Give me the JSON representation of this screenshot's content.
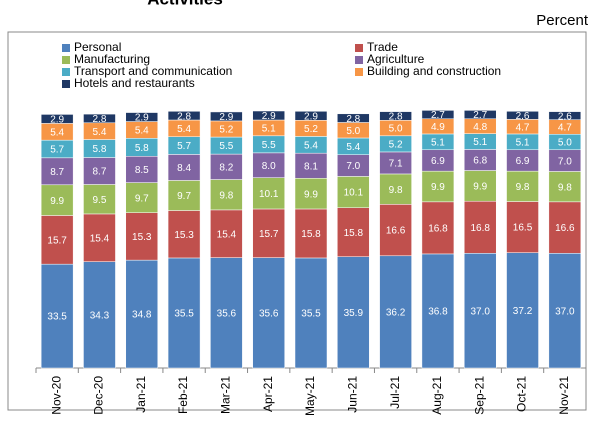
{
  "chart_data": {
    "type": "stacked-bar",
    "title": "Activities",
    "y_label": "Percent",
    "categories": [
      "Nov-20",
      "Dec-20",
      "Jan-21",
      "Feb-21",
      "Mar-21",
      "Apr-21",
      "May-21",
      "Jun-21",
      "Jul-21",
      "Aug-21",
      "Sep-21",
      "Oct-21",
      "Nov-21"
    ],
    "series": [
      {
        "name": "Personal",
        "color": "#4f81bd",
        "values": [
          33.5,
          34.3,
          34.8,
          35.5,
          35.6,
          35.6,
          35.5,
          35.9,
          36.2,
          36.8,
          37,
          37.2,
          37
        ],
        "value_labels": [
          "33.5",
          "34.3",
          "34.8",
          "35.5",
          "35.6",
          "35.6",
          "35.5",
          "35.9",
          "36.2",
          "36.8",
          "37.0",
          "37.2",
          "37.0"
        ]
      },
      {
        "name": "Trade",
        "color": "#c0504d",
        "values": [
          15.7,
          15.4,
          15.3,
          15.3,
          15.4,
          15.7,
          15.8,
          15.8,
          16.6,
          16.8,
          16.8,
          16.5,
          16.6
        ],
        "value_labels": [
          "15.7",
          "15.4",
          "15.3",
          "15.3",
          "15.4",
          "15.7",
          "15.8",
          "15.8",
          "16.6",
          "16.8",
          "16.8",
          "16.5",
          "16.6"
        ]
      },
      {
        "name": "Manufacturing",
        "color": "#9bbb59",
        "values": [
          9.9,
          9.5,
          9.7,
          9.7,
          9.8,
          10.1,
          9.9,
          10.1,
          9.8,
          9.9,
          9.9,
          9.8,
          9.8
        ],
        "value_labels": [
          "9.9",
          "9.5",
          "9.7",
          "9.7",
          "9.8",
          "10.1",
          "9.9",
          "10.1",
          "9.8",
          "9.9",
          "9.9",
          "9.8",
          "9.8"
        ]
      },
      {
        "name": "Agriculture",
        "color": "#8064a2",
        "values": [
          8.7,
          8.7,
          8.5,
          8.4,
          8.2,
          8,
          8.1,
          7,
          7.1,
          6.9,
          6.8,
          6.9,
          7
        ],
        "value_labels": [
          "8.7",
          "8.7",
          "8.5",
          "8.4",
          "8.2",
          "8.0",
          "8.1",
          "7.0",
          "7.1",
          "6.9",
          "6.8",
          "6.9",
          "7.0"
        ]
      },
      {
        "name": "Transport and communication",
        "color": "#4bacc6",
        "values": [
          5.7,
          5.8,
          5.8,
          5.7,
          5.5,
          5.5,
          5.4,
          5.4,
          5.2,
          5.1,
          5.1,
          5.1,
          5
        ],
        "value_labels": [
          "5.7",
          "5.8",
          "5.8",
          "5.7",
          "5.5",
          "5.5",
          "5.4",
          "5.4",
          "5.2",
          "5.1",
          "5.1",
          "5.1",
          "5.0"
        ]
      },
      {
        "name": "Building and construction",
        "color": "#f79646",
        "values": [
          5.4,
          5.4,
          5.4,
          5.4,
          5.2,
          5.1,
          5.2,
          5,
          5,
          4.9,
          4.8,
          4.7,
          4.7
        ],
        "value_labels": [
          "5.4",
          "5.4",
          "5.4",
          "5.4",
          "5.2",
          "5.1",
          "5.2",
          "5.0",
          "5.0",
          "4.9",
          "4.8",
          "4.7",
          "4.7"
        ]
      },
      {
        "name": "Hotels and restaurants",
        "color": "#1f3864",
        "values": [
          2.9,
          2.8,
          2.9,
          2.8,
          2.9,
          2.9,
          2.9,
          2.8,
          2.8,
          2.7,
          2.7,
          2.6,
          2.6
        ],
        "value_labels": [
          "2.9",
          "2.8",
          "2.9",
          "2.8",
          "2.9",
          "2.9",
          "2.9",
          "2.8",
          "2.8",
          "2.7",
          "2.7",
          "2.6",
          "2.6"
        ]
      }
    ],
    "ylim": [
      0,
      90
    ]
  }
}
